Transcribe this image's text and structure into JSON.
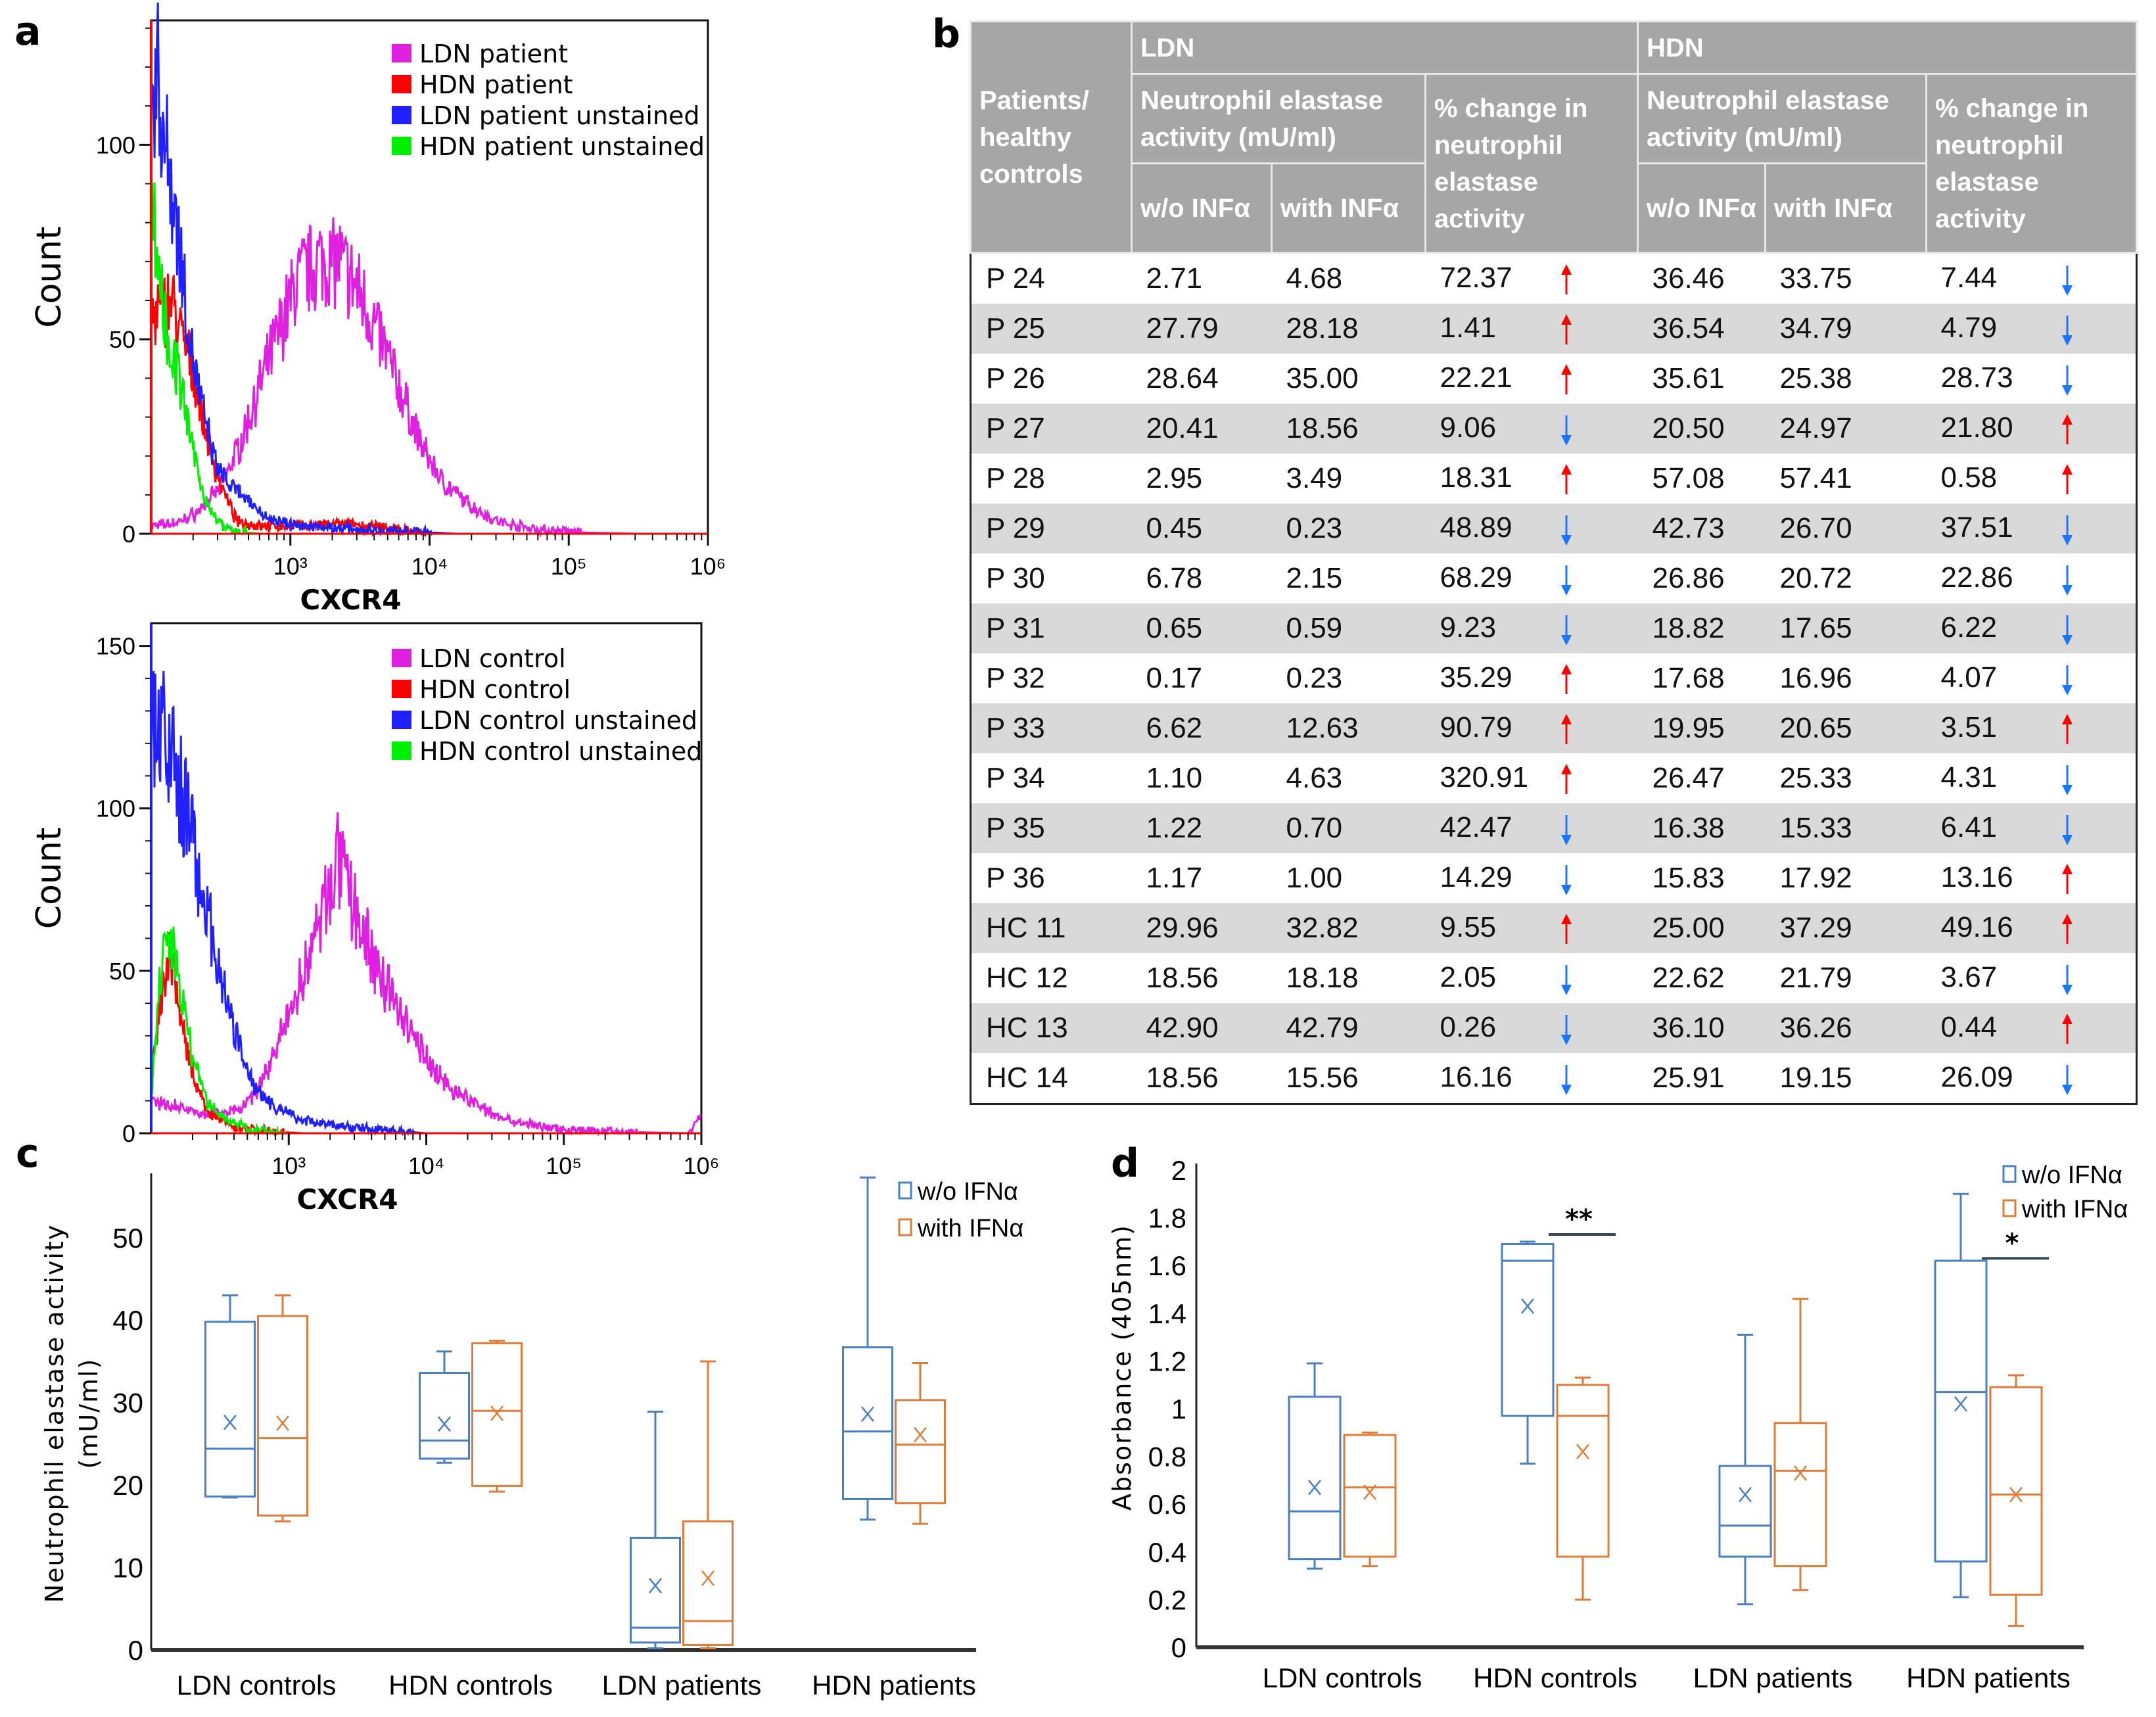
{
  "panel_letters": {
    "a": "a",
    "b": "b",
    "c": "c",
    "d": "d"
  },
  "chart_data": [
    {
      "id": "a_top",
      "type": "line",
      "title": "",
      "xlabel": "CXCR4",
      "ylabel": "Count",
      "xscale": "log10",
      "xlim_log10": [
        2,
        6
      ],
      "ylim": [
        0,
        132
      ],
      "x_ticks": [
        {
          "log10": 3,
          "label": "10³"
        },
        {
          "log10": 4,
          "label": "10⁴"
        },
        {
          "log10": 5,
          "label": "10⁵"
        },
        {
          "log10": 6,
          "label": "10⁶"
        }
      ],
      "y_ticks": [
        0,
        50,
        100
      ],
      "legend_position": "top-right",
      "series": [
        {
          "name": "LDN patient",
          "color": "#e020e0",
          "points": [
            [
              2.0,
              2
            ],
            [
              2.2,
              3
            ],
            [
              2.35,
              6
            ],
            [
              2.5,
              12
            ],
            [
              2.65,
              24
            ],
            [
              2.8,
              40
            ],
            [
              2.95,
              55
            ],
            [
              3.05,
              65
            ],
            [
              3.2,
              70
            ],
            [
              3.35,
              70
            ],
            [
              3.5,
              62
            ],
            [
              3.65,
              50
            ],
            [
              3.8,
              36
            ],
            [
              3.95,
              22
            ],
            [
              4.1,
              13
            ],
            [
              4.3,
              7
            ],
            [
              4.5,
              3
            ],
            [
              4.8,
              1
            ],
            [
              5.1,
              0.3
            ],
            [
              5.5,
              0
            ],
            [
              6,
              0
            ]
          ]
        },
        {
          "name": "HDN patient",
          "color": "#ff0000",
          "points": [
            [
              2.0,
              55
            ],
            [
              2.08,
              58
            ],
            [
              2.15,
              60
            ],
            [
              2.22,
              50
            ],
            [
              2.3,
              42
            ],
            [
              2.38,
              28
            ],
            [
              2.45,
              18
            ],
            [
              2.55,
              8
            ],
            [
              2.62,
              3
            ],
            [
              2.8,
              2
            ],
            [
              3.0,
              2
            ],
            [
              3.4,
              2.5
            ],
            [
              3.7,
              1.5
            ],
            [
              3.9,
              0.5
            ],
            [
              4.1,
              0
            ],
            [
              6,
              0
            ]
          ]
        },
        {
          "name": "LDN patient unstained",
          "color": "#1f1fff",
          "points": [
            [
              2.0,
              110
            ],
            [
              2.04,
              120
            ],
            [
              2.1,
              100
            ],
            [
              2.17,
              85
            ],
            [
              2.24,
              62
            ],
            [
              2.3,
              45
            ],
            [
              2.38,
              30
            ],
            [
              2.46,
              18
            ],
            [
              2.55,
              13
            ],
            [
              2.7,
              8
            ],
            [
              2.85,
              4
            ],
            [
              3.0,
              2.5
            ],
            [
              3.3,
              1.5
            ],
            [
              3.6,
              1
            ],
            [
              3.9,
              0.5
            ],
            [
              4.2,
              0
            ],
            [
              6,
              0
            ]
          ]
        },
        {
          "name": "HDN patient unstained",
          "color": "#00ee00",
          "points": [
            [
              2.0,
              85
            ],
            [
              2.05,
              70
            ],
            [
              2.12,
              50
            ],
            [
              2.2,
              40
            ],
            [
              2.28,
              25
            ],
            [
              2.36,
              12
            ],
            [
              2.44,
              5
            ],
            [
              2.52,
              2
            ],
            [
              2.6,
              0.5
            ],
            [
              2.8,
              0
            ],
            [
              6,
              0
            ]
          ]
        }
      ]
    },
    {
      "id": "a_bottom",
      "type": "line",
      "title": "",
      "xlabel": "CXCR4",
      "ylabel": "Count",
      "xscale": "log10",
      "xlim_log10": [
        2,
        6
      ],
      "ylim": [
        0,
        157
      ],
      "x_ticks": [
        {
          "log10": 3,
          "label": "10³"
        },
        {
          "log10": 4,
          "label": "10⁴"
        },
        {
          "log10": 5,
          "label": "10⁵"
        },
        {
          "log10": 6,
          "label": "10⁶"
        }
      ],
      "y_ticks": [
        0,
        50,
        100,
        150
      ],
      "legend_position": "top-right",
      "series": [
        {
          "name": "LDN control",
          "color": "#e020e0",
          "points": [
            [
              2.0,
              10
            ],
            [
              2.2,
              8
            ],
            [
              2.45,
              6
            ],
            [
              2.65,
              7
            ],
            [
              2.8,
              15
            ],
            [
              2.95,
              30
            ],
            [
              3.1,
              48
            ],
            [
              3.25,
              68
            ],
            [
              3.35,
              85
            ],
            [
              3.45,
              72
            ],
            [
              3.6,
              55
            ],
            [
              3.75,
              42
            ],
            [
              3.9,
              30
            ],
            [
              4.05,
              20
            ],
            [
              4.2,
              13
            ],
            [
              4.4,
              8
            ],
            [
              4.6,
              4
            ],
            [
              4.9,
              1.5
            ],
            [
              5.3,
              0.5
            ],
            [
              5.9,
              0
            ],
            [
              6,
              5
            ]
          ]
        },
        {
          "name": "HDN control",
          "color": "#ff0000",
          "points": [
            [
              2.0,
              15
            ],
            [
              2.07,
              40
            ],
            [
              2.13,
              55
            ],
            [
              2.18,
              45
            ],
            [
              2.24,
              30
            ],
            [
              2.32,
              15
            ],
            [
              2.42,
              6
            ],
            [
              2.6,
              2
            ],
            [
              2.9,
              0.5
            ],
            [
              3.1,
              0
            ],
            [
              6,
              0
            ]
          ]
        },
        {
          "name": "LDN control unstained",
          "color": "#1f1fff",
          "points": [
            [
              2.0,
              130
            ],
            [
              2.07,
              125
            ],
            [
              2.15,
              115
            ],
            [
              2.25,
              100
            ],
            [
              2.35,
              80
            ],
            [
              2.45,
              60
            ],
            [
              2.55,
              40
            ],
            [
              2.65,
              25
            ],
            [
              2.75,
              15
            ],
            [
              2.9,
              8
            ],
            [
              3.1,
              4
            ],
            [
              3.4,
              2
            ],
            [
              3.7,
              1
            ],
            [
              4.0,
              0
            ],
            [
              6,
              0
            ]
          ]
        },
        {
          "name": "HDN control unstained",
          "color": "#00ee00",
          "points": [
            [
              2.0,
              12
            ],
            [
              2.06,
              45
            ],
            [
              2.12,
              65
            ],
            [
              2.17,
              55
            ],
            [
              2.24,
              38
            ],
            [
              2.32,
              20
            ],
            [
              2.42,
              9
            ],
            [
              2.55,
              4
            ],
            [
              2.75,
              1
            ],
            [
              3.0,
              0
            ],
            [
              6,
              0
            ]
          ]
        }
      ]
    },
    {
      "id": "c",
      "type": "box",
      "ylabel_lines": [
        "Neutrophil elastase activity",
        "(mU/ml)"
      ],
      "xlabel": "",
      "ylim": [
        0,
        57
      ],
      "y_ticks": [
        0,
        10,
        20,
        30,
        40,
        50
      ],
      "categories": [
        "LDN controls",
        "HDN controls",
        "LDN patients",
        "HDN patients"
      ],
      "legend_position": "top-right",
      "series": [
        {
          "name": "w/o IFNα",
          "color": "#4a7fc1",
          "boxes": [
            {
              "min": 18.5,
              "q1": 18.6,
              "median": 24.4,
              "q3": 39.8,
              "max": 43.0,
              "mean": 27.6
            },
            {
              "min": 22.7,
              "q1": 23.2,
              "median": 25.4,
              "q3": 33.6,
              "max": 36.2,
              "mean": 27.4
            },
            {
              "min": 0.2,
              "q1": 0.9,
              "median": 2.7,
              "q3": 13.6,
              "max": 28.9,
              "mean": 7.8
            },
            {
              "min": 15.8,
              "q1": 18.3,
              "median": 26.5,
              "q3": 36.7,
              "max": 57.3,
              "mean": 28.6
            }
          ]
        },
        {
          "name": "with IFNα",
          "color": "#e07b39",
          "boxes": [
            {
              "min": 15.6,
              "q1": 16.3,
              "median": 25.7,
              "q3": 40.5,
              "max": 43.0,
              "mean": 27.5
            },
            {
              "min": 19.2,
              "q1": 19.9,
              "median": 29.0,
              "q3": 37.2,
              "max": 37.5,
              "mean": 28.7
            },
            {
              "min": 0.2,
              "q1": 0.6,
              "median": 3.5,
              "q3": 15.6,
              "max": 35.0,
              "mean": 8.7
            },
            {
              "min": 15.3,
              "q1": 17.8,
              "median": 24.9,
              "q3": 30.3,
              "max": 34.8,
              "mean": 26.1
            }
          ]
        }
      ]
    },
    {
      "id": "d",
      "type": "box",
      "ylabel_lines": [
        "Absorbance (405nm)"
      ],
      "xlabel": "",
      "ylim": [
        0,
        2
      ],
      "y_ticks": [
        "0",
        "0.2",
        "0.4",
        "0.6",
        "0.8",
        "1",
        "1.2",
        "1.4",
        "1.6",
        "1.8",
        "2"
      ],
      "categories": [
        "LDN controls",
        "HDN controls",
        "LDN patients",
        "HDN patients"
      ],
      "legend_position": "top-right",
      "series": [
        {
          "name": "w/o IFNα",
          "color": "#4a7fc1",
          "boxes": [
            {
              "min": 0.33,
              "q1": 0.37,
              "median": 0.57,
              "q3": 1.05,
              "max": 1.19,
              "mean": 0.67
            },
            {
              "min": 0.77,
              "q1": 0.97,
              "median": 1.62,
              "q3": 1.69,
              "max": 1.7,
              "mean": 1.43
            },
            {
              "min": 0.18,
              "q1": 0.38,
              "median": 0.51,
              "q3": 0.76,
              "max": 1.31,
              "mean": 0.64
            },
            {
              "min": 0.21,
              "q1": 0.36,
              "median": 1.07,
              "q3": 1.62,
              "max": 1.9,
              "mean": 1.02
            }
          ]
        },
        {
          "name": "with IFNα",
          "color": "#e07b39",
          "boxes": [
            {
              "min": 0.34,
              "q1": 0.38,
              "median": 0.67,
              "q3": 0.89,
              "max": 0.9,
              "mean": 0.65
            },
            {
              "min": 0.2,
              "q1": 0.38,
              "median": 0.97,
              "q3": 1.1,
              "max": 1.13,
              "mean": 0.82
            },
            {
              "min": 0.24,
              "q1": 0.34,
              "median": 0.74,
              "q3": 0.94,
              "max": 1.46,
              "mean": 0.73
            },
            {
              "min": 0.09,
              "q1": 0.22,
              "median": 0.64,
              "q3": 1.09,
              "max": 1.14,
              "mean": 0.64
            }
          ]
        }
      ],
      "annotations": [
        {
          "category": "HDN controls",
          "label": "**",
          "y": 1.73
        },
        {
          "category": "HDN patients",
          "label": "*",
          "y": 1.63
        }
      ]
    }
  ],
  "table": {
    "headers": {
      "patients": "Patients/ healthy controls",
      "ldn": "LDN",
      "hdn": "HDN",
      "activity": "Neutrophil elastase activity (mU/ml)",
      "pct_change": "% change in neutrophil elastase activity",
      "without": "w/o INFα",
      "with": "with INFα"
    },
    "rows": [
      [
        "P 24",
        "2.71",
        "4.68",
        "72.37",
        "up",
        "36.46",
        "33.75",
        "7.44",
        "down"
      ],
      [
        "P 25",
        "27.79",
        "28.18",
        "1.41",
        "up",
        "36.54",
        "34.79",
        "4.79",
        "down"
      ],
      [
        "P 26",
        "28.64",
        "35.00",
        "22.21",
        "up",
        "35.61",
        "25.38",
        "28.73",
        "down"
      ],
      [
        "P 27",
        "20.41",
        "18.56",
        "9.06",
        "down",
        "20.50",
        "24.97",
        "21.80",
        "up"
      ],
      [
        "P 28",
        "2.95",
        "3.49",
        "18.31",
        "up",
        "57.08",
        "57.41",
        "0.58",
        "up"
      ],
      [
        "P 29",
        "0.45",
        "0.23",
        "48.89",
        "down",
        "42.73",
        "26.70",
        "37.51",
        "down"
      ],
      [
        "P 30",
        "6.78",
        "2.15",
        "68.29",
        "down",
        "26.86",
        "20.72",
        "22.86",
        "down"
      ],
      [
        "P 31",
        "0.65",
        "0.59",
        "9.23",
        "down",
        "18.82",
        "17.65",
        "6.22",
        "down"
      ],
      [
        "P 32",
        "0.17",
        "0.23",
        "35.29",
        "up",
        "17.68",
        "16.96",
        "4.07",
        "down"
      ],
      [
        "P 33",
        "6.62",
        "12.63",
        "90.79",
        "up",
        "19.95",
        "20.65",
        "3.51",
        "up"
      ],
      [
        "P 34",
        "1.10",
        "4.63",
        "320.91",
        "up",
        "26.47",
        "25.33",
        "4.31",
        "down"
      ],
      [
        "P 35",
        "1.22",
        "0.70",
        "42.47",
        "down",
        "16.38",
        "15.33",
        "6.41",
        "down"
      ],
      [
        "P 36",
        "1.17",
        "1.00",
        "14.29",
        "down",
        "15.83",
        "17.92",
        "13.16",
        "up"
      ],
      [
        "HC 11",
        "29.96",
        "32.82",
        "9.55",
        "up",
        "25.00",
        "37.29",
        "49.16",
        "up"
      ],
      [
        "HC 12",
        "18.56",
        "18.18",
        "2.05",
        "down",
        "22.62",
        "21.79",
        "3.67",
        "down"
      ],
      [
        "HC 13",
        "42.90",
        "42.79",
        "0.26",
        "down",
        "36.10",
        "36.26",
        "0.44",
        "up"
      ],
      [
        "HC 14",
        "18.56",
        "15.56",
        "16.16",
        "down",
        "25.91",
        "19.15",
        "26.09",
        "down"
      ]
    ],
    "arrow_colors": {
      "up": "#ff0000",
      "down": "#1a75ff"
    }
  }
}
